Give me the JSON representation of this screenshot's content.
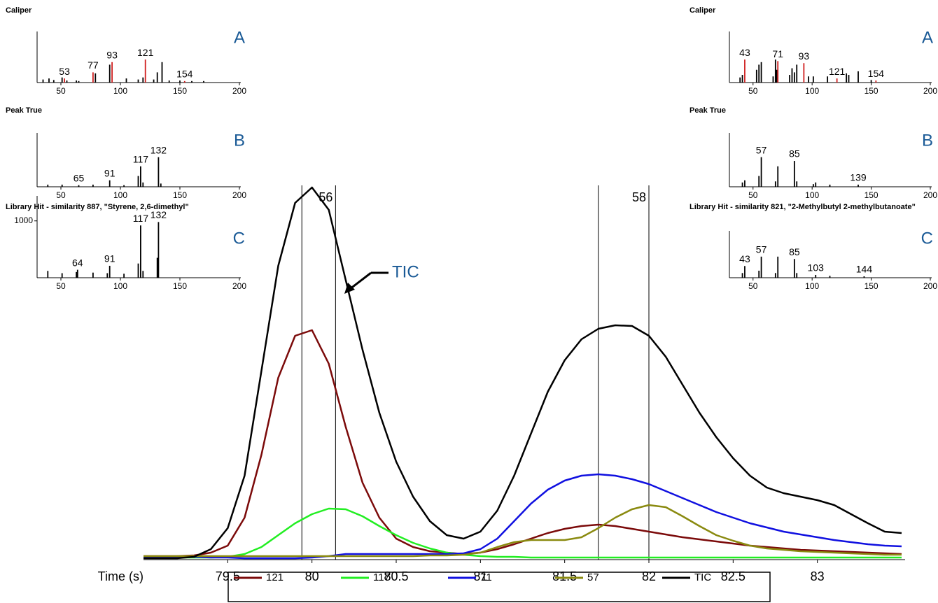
{
  "chart_data": [
    {
      "type": "line",
      "x_label": "Time (s)",
      "x": [
        79.0,
        79.1,
        79.2,
        79.3,
        79.4,
        79.5,
        79.6,
        79.7,
        79.8,
        79.9,
        80.0,
        80.1,
        80.2,
        80.3,
        80.4,
        80.5,
        80.6,
        80.7,
        80.8,
        80.9,
        81.0,
        81.1,
        81.2,
        81.3,
        81.4,
        81.5,
        81.6,
        81.7,
        81.8,
        81.9,
        82.0,
        82.1,
        82.2,
        82.3,
        82.4,
        82.5,
        82.6,
        82.7,
        82.8,
        82.9,
        83.0,
        83.1,
        83.2,
        83.3,
        83.4,
        83.5
      ],
      "xlim": [
        79.0,
        83.5
      ],
      "xticks": [
        79.5,
        80,
        80.5,
        81,
        81.5,
        82,
        82.5,
        83
      ],
      "ylim": [
        0,
        535
      ],
      "series": [
        {
          "name": "121",
          "color": "#7b0a0a",
          "values": [
            5,
            5,
            5,
            6,
            10,
            20,
            60,
            150,
            260,
            320,
            328,
            280,
            190,
            110,
            60,
            30,
            18,
            12,
            10,
            8,
            10,
            15,
            22,
            30,
            38,
            44,
            48,
            50,
            48,
            44,
            40,
            36,
            32,
            29,
            26,
            23,
            20,
            18,
            16,
            14,
            13,
            12,
            11,
            10,
            9,
            8
          ]
        },
        {
          "name": "117",
          "color": "#22ee22",
          "values": [
            3,
            3,
            3,
            3,
            3,
            4,
            8,
            18,
            35,
            52,
            65,
            73,
            72,
            62,
            48,
            35,
            24,
            16,
            10,
            7,
            5,
            4,
            4,
            3,
            3,
            3,
            3,
            3,
            3,
            3,
            3,
            3,
            3,
            3,
            3,
            3,
            3,
            3,
            3,
            3,
            3,
            3,
            3,
            3,
            3,
            3
          ]
        },
        {
          "name": "71",
          "color": "#1010e0",
          "values": [
            4,
            4,
            4,
            4,
            3,
            3,
            2,
            2,
            2,
            2,
            3,
            5,
            8,
            8,
            8,
            8,
            8,
            8,
            8,
            9,
            15,
            30,
            55,
            80,
            100,
            113,
            120,
            122,
            120,
            115,
            108,
            98,
            88,
            78,
            68,
            60,
            52,
            46,
            40,
            36,
            32,
            28,
            25,
            22,
            20,
            19
          ]
        },
        {
          "name": "57",
          "color": "#8a8a10",
          "values": [
            5,
            5,
            5,
            5,
            5,
            5,
            5,
            5,
            5,
            5,
            5,
            5,
            5,
            5,
            5,
            5,
            5,
            6,
            6,
            7,
            10,
            18,
            25,
            28,
            28,
            28,
            32,
            45,
            60,
            72,
            78,
            75,
            62,
            48,
            35,
            27,
            20,
            16,
            14,
            12,
            11,
            10,
            9,
            8,
            7,
            7
          ]
        },
        {
          "name": "TIC",
          "color": "#000000",
          "values": [
            2,
            2,
            2,
            4,
            15,
            45,
            120,
            270,
            420,
            510,
            532,
            500,
            400,
            300,
            210,
            140,
            90,
            55,
            35,
            30,
            40,
            70,
            120,
            180,
            240,
            285,
            315,
            330,
            335,
            334,
            320,
            290,
            250,
            210,
            175,
            145,
            120,
            103,
            95,
            90,
            85,
            78,
            65,
            52,
            40,
            38
          ]
        }
      ],
      "markers": [
        {
          "x": 79.94
        },
        {
          "x": 80.14,
          "label": "56"
        },
        {
          "x": 81.7
        },
        {
          "x": 82.0,
          "label": "58"
        }
      ],
      "annotation": "TIC"
    },
    {
      "type": "spectrum",
      "title": "Caliper",
      "letter": "A",
      "xlim": [
        30,
        200
      ],
      "xticks": [
        50,
        100,
        150,
        200
      ],
      "ylim": [
        0,
        100
      ],
      "series": [
        {
          "color": "#000000",
          "x": [
            35,
            40,
            44,
            51,
            55,
            63,
            65,
            79,
            91,
            105,
            115,
            119,
            128,
            131,
            135,
            141,
            150,
            160,
            170
          ],
          "values": [
            6,
            8,
            5,
            10,
            4,
            4,
            3,
            18,
            35,
            8,
            6,
            10,
            6,
            20,
            40,
            4,
            4,
            3,
            3
          ]
        },
        {
          "color": "#d02020",
          "x": [
            53,
            77,
            93,
            121,
            154
          ],
          "values": [
            8,
            20,
            40,
            45,
            3
          ]
        }
      ],
      "labels": [
        53,
        77,
        93,
        121,
        154
      ]
    },
    {
      "type": "spectrum",
      "title": "Peak True",
      "letter": "B",
      "xlim": [
        30,
        200
      ],
      "xticks": [
        50,
        100,
        150,
        200
      ],
      "ylim": [
        0,
        100
      ],
      "series": [
        {
          "color": "#000000",
          "x": [
            39,
            51,
            65,
            77,
            91,
            103,
            115,
            117,
            119,
            132,
            134
          ],
          "values": [
            4,
            4,
            3,
            4,
            12,
            3,
            20,
            38,
            8,
            55,
            6
          ]
        }
      ],
      "labels": [
        65,
        91,
        117,
        132
      ]
    },
    {
      "type": "spectrum",
      "title": "Library Hit - similarity 887, \"Styrene, 2,6-dimethyl\"",
      "letter": "C",
      "xlim": [
        30,
        200
      ],
      "xticks": [
        50,
        100,
        150,
        200
      ],
      "ylim": [
        0,
        1440
      ],
      "yticks": [
        1000
      ],
      "series": [
        {
          "color": "#000000",
          "x": [
            39,
            51,
            63,
            64,
            77,
            89,
            91,
            103,
            115,
            117,
            119,
            131,
            132
          ],
          "values": [
            120,
            80,
            100,
            140,
            90,
            80,
            210,
            70,
            250,
            920,
            120,
            350,
            980
          ]
        }
      ],
      "labels": [
        64,
        91,
        117,
        132
      ]
    },
    {
      "type": "spectrum",
      "title": "Caliper",
      "letter": "A",
      "xlim": [
        30,
        200
      ],
      "xticks": [
        50,
        100,
        150,
        200
      ],
      "ylim": [
        0,
        100
      ],
      "series": [
        {
          "color": "#000000",
          "x": [
            39,
            41,
            53,
            55,
            57,
            67,
            69,
            70,
            81,
            83,
            85,
            87,
            97,
            101,
            113,
            129,
            131,
            139,
            150
          ],
          "values": [
            10,
            15,
            25,
            35,
            40,
            12,
            45,
            25,
            15,
            28,
            20,
            35,
            12,
            12,
            12,
            18,
            15,
            22,
            5
          ]
        },
        {
          "color": "#d02020",
          "x": [
            43,
            71,
            93,
            121,
            154
          ],
          "values": [
            45,
            42,
            38,
            8,
            4
          ]
        }
      ],
      "labels": [
        43,
        71,
        93,
        121,
        154
      ]
    },
    {
      "type": "spectrum",
      "title": "Peak True",
      "letter": "B",
      "xlim": [
        30,
        200
      ],
      "xticks": [
        50,
        100,
        150,
        200
      ],
      "ylim": [
        0,
        100
      ],
      "series": [
        {
          "color": "#000000",
          "x": [
            41,
            43,
            55,
            57,
            69,
            71,
            85,
            87,
            101,
            103,
            115,
            139
          ],
          "values": [
            8,
            12,
            20,
            55,
            10,
            38,
            48,
            10,
            5,
            8,
            4,
            4
          ]
        }
      ],
      "labels": [
        57,
        85,
        139
      ]
    },
    {
      "type": "spectrum",
      "title": "Library Hit - similarity 821, \"2-Methylbutyl 2-methylbutanoate\"",
      "letter": "C",
      "xlim": [
        30,
        200
      ],
      "xticks": [
        50,
        100,
        150,
        200
      ],
      "ylim": [
        0,
        100
      ],
      "series": [
        {
          "color": "#000000",
          "x": [
            41,
            43,
            55,
            57,
            69,
            71,
            85,
            87,
            103,
            115,
            144
          ],
          "values": [
            10,
            25,
            15,
            45,
            10,
            45,
            40,
            10,
            6,
            4,
            3
          ]
        }
      ],
      "labels": [
        43,
        57,
        85,
        103,
        144
      ]
    }
  ]
}
